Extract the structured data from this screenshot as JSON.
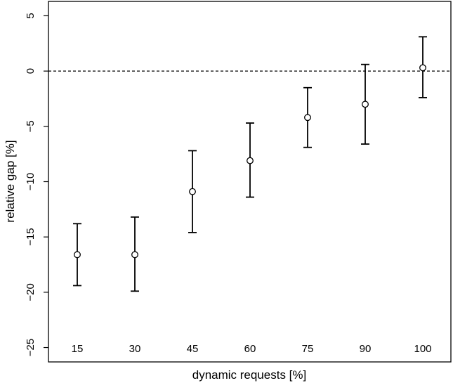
{
  "chart_data": {
    "type": "scatter",
    "title": "",
    "xlabel": "dynamic requests [%]",
    "ylabel": "relative gap [%]",
    "categories": [
      "15",
      "30",
      "45",
      "60",
      "75",
      "90",
      "100"
    ],
    "points": [
      {
        "x": "15",
        "mean": -16.6,
        "lower": -19.4,
        "upper": -13.8
      },
      {
        "x": "30",
        "mean": -16.6,
        "lower": -19.9,
        "upper": -13.2
      },
      {
        "x": "45",
        "mean": -10.9,
        "lower": -14.6,
        "upper": -7.2
      },
      {
        "x": "60",
        "mean": -8.1,
        "lower": -11.4,
        "upper": -4.7
      },
      {
        "x": "75",
        "mean": -4.2,
        "lower": -6.9,
        "upper": -1.5
      },
      {
        "x": "90",
        "mean": -3.0,
        "lower": -6.6,
        "upper": 0.6
      },
      {
        "x": "100",
        "mean": 0.3,
        "lower": -2.4,
        "upper": 3.1
      }
    ],
    "yticks": [
      -25,
      -20,
      -15,
      -10,
      -5,
      0,
      5
    ],
    "ylim": [
      -26.3,
      6.3
    ],
    "reference_line": {
      "y": 0,
      "style": "dashed"
    },
    "grid": false,
    "legend": "none",
    "colors": {
      "marks": "#000000",
      "background": "#ffffff"
    }
  }
}
